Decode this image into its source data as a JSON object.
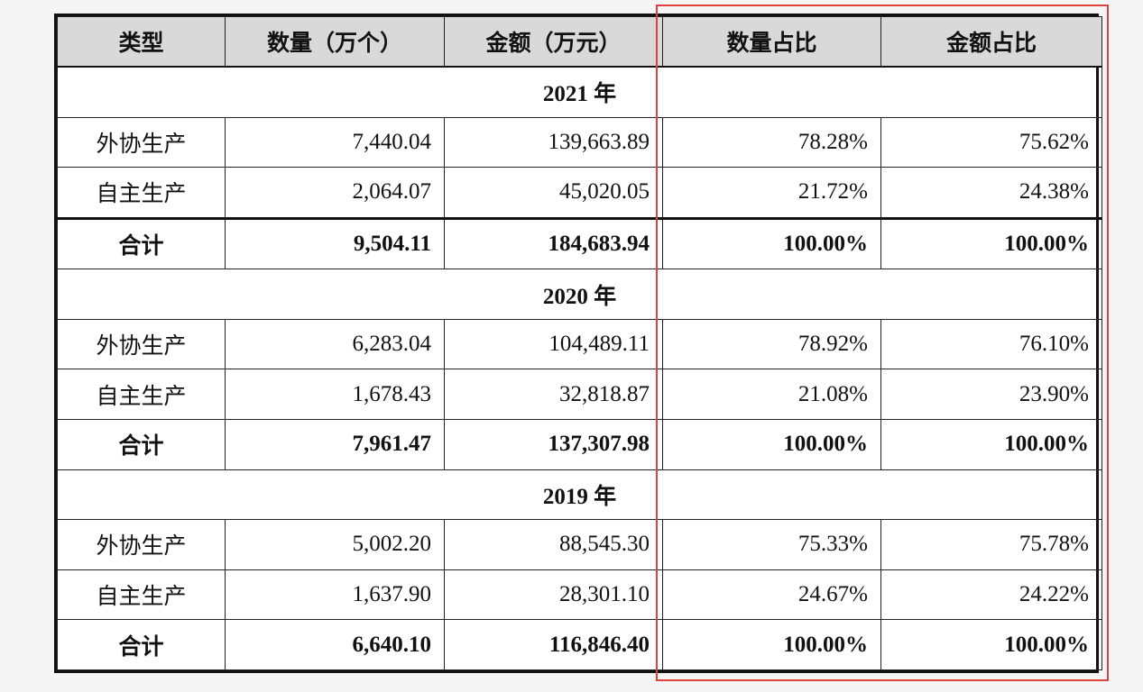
{
  "table": {
    "headers": [
      "类型",
      "数量（万个）",
      "金额（万元）",
      "数量占比",
      "金额占比"
    ],
    "sections": [
      {
        "year": "2021 年",
        "rows": [
          {
            "type": "外协生产",
            "quantity": "7,440.04",
            "amount": "139,663.89",
            "quantity_share": "78.28%",
            "amount_share": "75.62%"
          },
          {
            "type": "自主生产",
            "quantity": "2,064.07",
            "amount": "45,020.05",
            "quantity_share": "21.72%",
            "amount_share": "24.38%"
          }
        ],
        "total": {
          "type": "合计",
          "quantity": "9,504.11",
          "amount": "184,683.94",
          "quantity_share": "100.00%",
          "amount_share": "100.00%"
        }
      },
      {
        "year": "2020 年",
        "rows": [
          {
            "type": "外协生产",
            "quantity": "6,283.04",
            "amount": "104,489.11",
            "quantity_share": "78.92%",
            "amount_share": "76.10%"
          },
          {
            "type": "自主生产",
            "quantity": "1,678.43",
            "amount": "32,818.87",
            "quantity_share": "21.08%",
            "amount_share": "23.90%"
          }
        ],
        "total": {
          "type": "合计",
          "quantity": "7,961.47",
          "amount": "137,307.98",
          "quantity_share": "100.00%",
          "amount_share": "100.00%"
        }
      },
      {
        "year": "2019 年",
        "rows": [
          {
            "type": "外协生产",
            "quantity": "5,002.20",
            "amount": "88,545.30",
            "quantity_share": "75.33%",
            "amount_share": "75.78%"
          },
          {
            "type": "自主生产",
            "quantity": "1,637.90",
            "amount": "28,301.10",
            "quantity_share": "24.67%",
            "amount_share": "24.22%"
          }
        ],
        "total": {
          "type": "合计",
          "quantity": "6,640.10",
          "amount": "116,846.40",
          "quantity_share": "100.00%",
          "amount_share": "100.00%"
        }
      }
    ]
  },
  "colors": {
    "header_background": "#d9d9d9",
    "highlight_border": "#e0413a",
    "page_background": "#f5f5f5"
  }
}
